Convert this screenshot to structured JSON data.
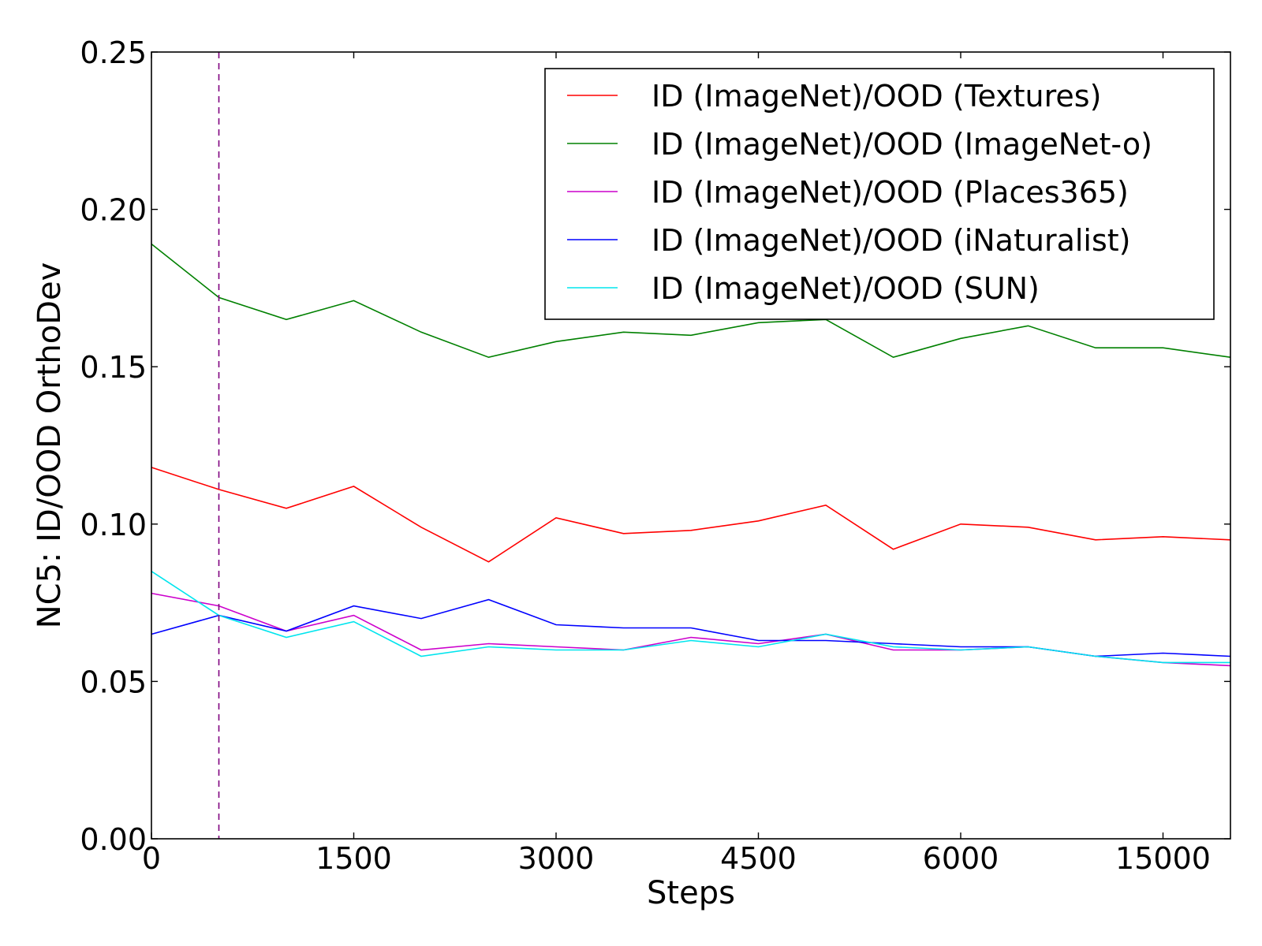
{
  "chart_data": {
    "type": "line",
    "title": "",
    "xlabel": "Steps",
    "ylabel": "NC5: ID/OOD OrthoDev",
    "ylim": [
      0,
      0.25
    ],
    "yticks": [
      "0.00",
      "0.05",
      "0.10",
      "0.15",
      "0.20",
      "0.25"
    ],
    "xtick_labels": [
      "0",
      "1500",
      "3000",
      "4500",
      "6000",
      "15000"
    ],
    "xtick_positions": [
      0,
      3,
      6,
      9,
      12,
      15
    ],
    "x_positions": [
      0,
      1,
      2,
      3,
      4,
      5,
      6,
      7,
      8,
      9,
      10,
      11,
      12,
      13,
      14,
      15,
      16
    ],
    "x_range": [
      0,
      16
    ],
    "vline": {
      "x": 1,
      "color": "#800080",
      "style": "dashed"
    },
    "grid": false,
    "legend": "top-right",
    "series": [
      {
        "name": "ID (ImageNet)/OOD (Textures)",
        "color": "#ff0000",
        "values": [
          0.118,
          0.111,
          0.105,
          0.112,
          0.099,
          0.088,
          0.102,
          0.097,
          0.098,
          0.101,
          0.106,
          0.092,
          0.1,
          0.099,
          0.095,
          0.096,
          0.095
        ]
      },
      {
        "name": "ID (ImageNet)/OOD (ImageNet-o)",
        "color": "#008000",
        "values": [
          0.189,
          0.172,
          0.165,
          0.171,
          0.161,
          0.153,
          0.158,
          0.161,
          0.16,
          0.164,
          0.165,
          0.153,
          0.159,
          0.163,
          0.156,
          0.156,
          0.153
        ]
      },
      {
        "name": "ID (ImageNet)/OOD (Places365)",
        "color": "#cc00cc",
        "values": [
          0.078,
          0.074,
          0.066,
          0.071,
          0.06,
          0.062,
          0.061,
          0.06,
          0.064,
          0.062,
          0.065,
          0.06,
          0.06,
          0.061,
          0.058,
          0.056,
          0.055
        ]
      },
      {
        "name": "ID (ImageNet)/OOD (iNaturalist)",
        "color": "#0000ff",
        "values": [
          0.065,
          0.071,
          0.066,
          0.074,
          0.07,
          0.076,
          0.068,
          0.067,
          0.067,
          0.063,
          0.063,
          0.062,
          0.061,
          0.061,
          0.058,
          0.059,
          0.058
        ]
      },
      {
        "name": "ID (ImageNet)/OOD (SUN)",
        "color": "#00e5ee",
        "values": [
          0.085,
          0.071,
          0.064,
          0.069,
          0.058,
          0.061,
          0.06,
          0.06,
          0.063,
          0.061,
          0.065,
          0.061,
          0.06,
          0.061,
          0.058,
          0.056,
          0.056
        ]
      }
    ]
  }
}
